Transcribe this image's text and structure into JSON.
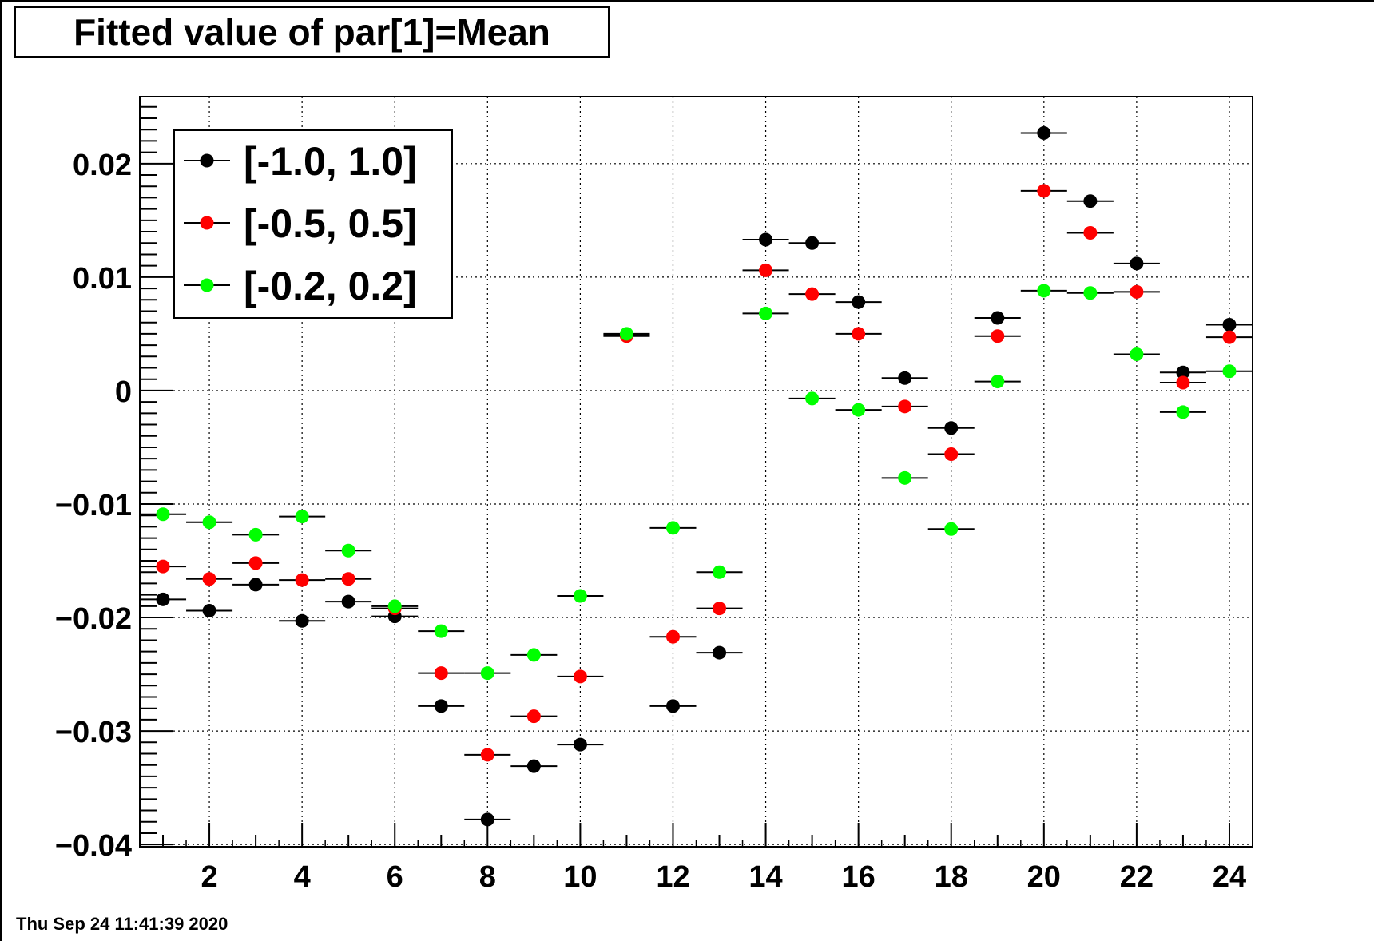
{
  "title": "Fitted value of par[1]=Mean",
  "timestamp": "Thu Sep 24 11:41:39 2020",
  "chart_data": {
    "type": "scatter",
    "title": "Fitted value of par[1]=Mean",
    "xlim": [
      0.5,
      24.5
    ],
    "ylim": [
      -0.0402,
      0.0259
    ],
    "x_ticks": [
      2,
      4,
      6,
      8,
      10,
      12,
      14,
      16,
      18,
      20,
      22,
      24
    ],
    "x_tick_labels": [
      "2",
      "4",
      "6",
      "8",
      "10",
      "12",
      "14",
      "16",
      "18",
      "20",
      "22",
      "24"
    ],
    "y_ticks": [
      -0.04,
      -0.03,
      -0.02,
      -0.01,
      0,
      0.01,
      0.02
    ],
    "y_tick_labels": [
      "−0.04",
      "−0.03",
      "−0.02",
      "−0.01",
      "0",
      "0.01",
      "0.02"
    ],
    "grid": true,
    "legend_position": "top-left",
    "x": [
      1,
      2,
      3,
      4,
      5,
      6,
      7,
      8,
      9,
      10,
      11,
      12,
      13,
      14,
      15,
      16,
      17,
      18,
      19,
      20,
      21,
      22,
      23,
      24
    ],
    "x_error": 0.5,
    "series": [
      {
        "name": "[-1.0, 1.0]",
        "color": "#000000",
        "values": [
          -0.0184,
          -0.0194,
          -0.0171,
          -0.0203,
          -0.0186,
          -0.0199,
          -0.0278,
          -0.0378,
          -0.0331,
          -0.0312,
          0.0049,
          -0.0278,
          -0.0231,
          0.0133,
          0.013,
          0.0078,
          0.0011,
          -0.0033,
          0.0064,
          0.0227,
          0.0167,
          0.0112,
          0.0016,
          0.0058
        ]
      },
      {
        "name": "[-0.5, 0.5]",
        "color": "#ff0000",
        "values": [
          -0.0155,
          -0.0166,
          -0.0152,
          -0.0167,
          -0.0166,
          -0.0192,
          -0.0249,
          -0.0321,
          -0.0287,
          -0.0252,
          0.0048,
          -0.0217,
          -0.0192,
          0.0106,
          0.0085,
          0.005,
          -0.0014,
          -0.0056,
          0.0048,
          0.0176,
          0.0139,
          0.0087,
          0.0007,
          0.0047
        ]
      },
      {
        "name": "[-0.2, 0.2]",
        "color": "#00ff00",
        "values": [
          -0.0109,
          -0.0116,
          -0.0127,
          -0.0111,
          -0.0141,
          -0.019,
          -0.0212,
          -0.0249,
          -0.0233,
          -0.0181,
          0.005,
          -0.0121,
          -0.016,
          0.0068,
          -0.0007,
          -0.0017,
          -0.0077,
          -0.0122,
          0.0008,
          0.0088,
          0.0086,
          0.0032,
          -0.0019,
          0.0017
        ]
      }
    ]
  }
}
